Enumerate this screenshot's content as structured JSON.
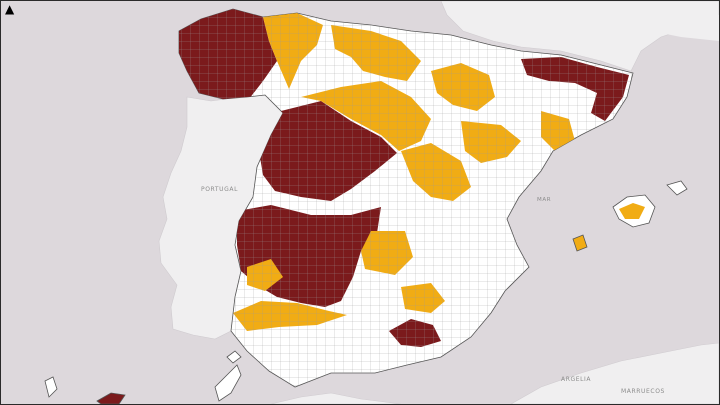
{
  "map": {
    "labels": {
      "portugal": "PORTUGAL",
      "sea": "MAR",
      "africa_1": "ARGELIA",
      "africa_2": "MARRUECOS"
    },
    "north_arrow_glyph": "▲",
    "colors": {
      "sea": "#ddd8dc",
      "land": "#ffffff",
      "neighbour": "#f0eff0",
      "border": "#8e8e8e",
      "class_high": "#7b1a1c",
      "class_mid": "#f1ac14",
      "class_low": "#ffffff"
    }
  }
}
